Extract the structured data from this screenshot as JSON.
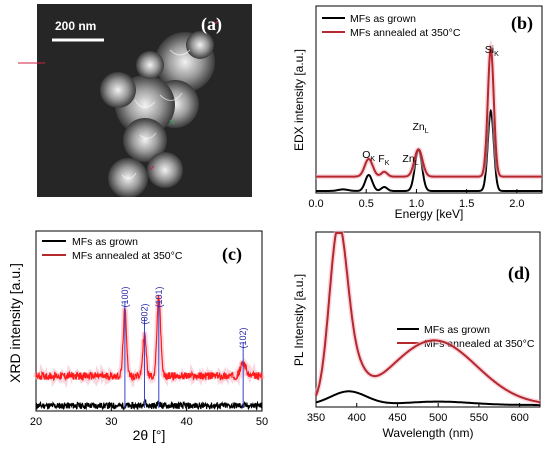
{
  "colors": {
    "grown": "#000000",
    "annealed": "#b5282c",
    "annealed_xrd": "#ff1a1a",
    "peak_label": "#2a2aa8",
    "peak_line": "#3344cc"
  },
  "panels": [
    {
      "id": "a",
      "label": "(a)",
      "type": "image",
      "scale_bar": "200 nm"
    },
    {
      "id": "b",
      "label": "(b)",
      "legend": [
        "MFs as grown",
        "MFs annealed at 350°C"
      ],
      "chart_data": {
        "type": "line",
        "xlabel": "Energy [keV]",
        "ylabel": "EDX intensity [a.u.]",
        "xlim": [
          0,
          2.25
        ],
        "xticks": [
          "0.0",
          "0.5",
          "1.0",
          "1.5",
          "2.0"
        ],
        "annotations": [
          {
            "text": "O",
            "sub": "K",
            "x": 0.52
          },
          {
            "text": "F",
            "sub": "K",
            "x": 0.68
          },
          {
            "text": "Zn",
            "sub": "L",
            "x": 0.92
          },
          {
            "text": "Zn",
            "sub": "L",
            "x": 1.02
          },
          {
            "text": "Si",
            "sub": "K",
            "x": 1.74
          }
        ],
        "series": [
          {
            "name": "MFs as grown",
            "peaks": [
              [
                0.27,
                0.02,
                0.05
              ],
              [
                0.525,
                0.2,
                0.035
              ],
              [
                0.68,
                0.05,
                0.03
              ],
              [
                1.02,
                0.52,
                0.035
              ],
              [
                1.74,
                1.0,
                0.03
              ]
            ],
            "baseline": 0.0
          },
          {
            "name": "MFs annealed at 350°C",
            "peaks": [
              [
                0.525,
                0.22,
                0.04
              ],
              [
                0.68,
                0.06,
                0.03
              ],
              [
                1.02,
                0.34,
                0.04
              ],
              [
                1.74,
                1.6,
                0.03
              ]
            ],
            "baseline": 0.18
          }
        ]
      }
    },
    {
      "id": "c",
      "label": "(c)",
      "legend": [
        "MFs as grown",
        "MFs annealed at 350°C"
      ],
      "chart_data": {
        "type": "line",
        "xlabel": "2θ [°]",
        "ylabel": "XRD intensity [a.u.]",
        "xlim": [
          20,
          50
        ],
        "xticks": [
          "20",
          "30",
          "40",
          "50"
        ],
        "peak_labels": [
          {
            "text": "(100)",
            "x": 31.8
          },
          {
            "text": "(002)",
            "x": 34.4
          },
          {
            "text": "(101)",
            "x": 36.3
          },
          {
            "text": "(102)",
            "x": 47.5
          }
        ],
        "series": [
          {
            "name": "MFs as grown",
            "peaks": [
              [
                34.4,
                0.05,
                0.15
              ],
              [
                36.3,
                0.03,
                0.15
              ]
            ],
            "baseline": 0.03
          },
          {
            "name": "MFs annealed at 350°C",
            "peaks": [
              [
                31.8,
                0.6,
                0.22
              ],
              [
                34.4,
                0.38,
                0.22
              ],
              [
                36.3,
                0.72,
                0.24
              ],
              [
                47.5,
                0.12,
                0.35
              ]
            ],
            "baseline": 0.3
          }
        ]
      }
    },
    {
      "id": "d",
      "label": "(d)",
      "legend": [
        "MFs as grown",
        "MFs annealed at 350°C"
      ],
      "chart_data": {
        "type": "line",
        "xlabel": "Wavelength (nm)",
        "ylabel": "PL Intensity [a.u.]",
        "xlim": [
          350,
          625
        ],
        "xticks": [
          "350",
          "400",
          "450",
          "500",
          "550",
          "600"
        ],
        "series": [
          {
            "name": "MFs as grown",
            "peaks": [
              [
                390,
                0.08,
                22
              ],
              [
                500,
                0.02,
                40
              ]
            ],
            "baseline": 0.0
          },
          {
            "name": "MFs annealed at 350°C",
            "peaks": [
              [
                377,
                0.95,
                11
              ],
              [
                395,
                0.18,
                14
              ],
              [
                495,
                0.38,
                52
              ]
            ],
            "baseline": 0.0
          }
        ]
      }
    }
  ]
}
